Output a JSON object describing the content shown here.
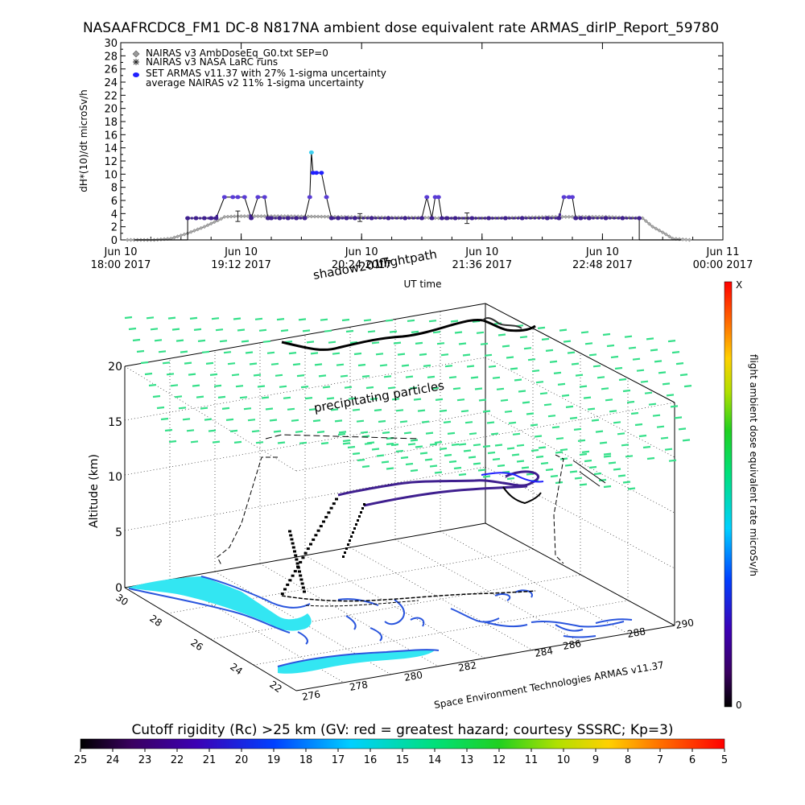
{
  "title": "NASAAFRCDC8_FM1 DC-8    N817NA ambient dose equivalent rate ARMAS_dirIP_Report_59780",
  "colors": {
    "nairas_v3": "#8a8a8a",
    "nairas_larc": "#333333",
    "armas": "#3f1f8f",
    "armas_peak": "#3fd0f0",
    "armas_blue": "#2020ff",
    "cutoff_cyan": "#33e6f2",
    "precip_green": "#36e08a",
    "coast_blue": "#2a55dd",
    "path_black": "#000000"
  },
  "legend": [
    {
      "label": "NAIRAS v3 AmbDoseEq_G0.txt SEP=0",
      "icon": "diamond-icon"
    },
    {
      "label": "NAIRAS v3 NASA LaRC runs",
      "icon": "star-icon"
    },
    {
      "label": "SET ARMAS v11.37 with 27% 1-sigma uncertainty",
      "icon": "filled-dot-icon"
    },
    {
      "label": "average NAIRAS v2 11% 1-sigma uncertainty",
      "icon": ""
    }
  ],
  "chart_data": [
    {
      "type": "scatter",
      "ylabel": "dH*(10)/dt microSv/h",
      "xlabel": "UT time",
      "ylim": [
        0,
        30
      ],
      "yticks": [
        0,
        2,
        4,
        6,
        8,
        10,
        12,
        14,
        16,
        18,
        20,
        22,
        24,
        26,
        28,
        30
      ],
      "xlim_minutes_from_start": [
        0,
        360
      ],
      "xticks": [
        {
          "line1": "Jun 10",
          "line2": "18:00 2017"
        },
        {
          "line1": "Jun 10",
          "line2": "19:12 2017"
        },
        {
          "line1": "Jun 10",
          "line2": "20:24 2017"
        },
        {
          "line1": "Jun 10",
          "line2": "21:36 2017"
        },
        {
          "line1": "Jun 10",
          "line2": "22:48 2017"
        },
        {
          "line1": "Jun 11",
          "line2": "00:00 2017"
        }
      ],
      "series": [
        {
          "name": "NAIRAS v3 AmbDoseEq_G0.txt SEP=0",
          "x_minutes": [
            4,
            20,
            30,
            40,
            50,
            55,
            60,
            62,
            70,
            80,
            100,
            130,
            160,
            170,
            180,
            190,
            200,
            220,
            240,
            260,
            270,
            280,
            290,
            300,
            312,
            318,
            325,
            330,
            340
          ],
          "y": [
            0,
            0,
            0.2,
            1,
            2,
            2.6,
            3.2,
            3.5,
            3.6,
            3.6,
            3.6,
            3.5,
            3.4,
            3.4,
            3.4,
            3.3,
            3.3,
            3.3,
            3.4,
            3.5,
            3.5,
            3.5,
            3.5,
            3.4,
            3.3,
            2,
            1,
            0.2,
            0
          ]
        },
        {
          "name": "SET ARMAS v11.37 with 27% 1-sigma uncertainty",
          "x_minutes": [
            40,
            45,
            50,
            54,
            57,
            62,
            67,
            70,
            74,
            78,
            82,
            86,
            88,
            90,
            95,
            100,
            105,
            110,
            113,
            114,
            115,
            117,
            120,
            123,
            126,
            130,
            135,
            140,
            150,
            160,
            170,
            180,
            183,
            186,
            188,
            190,
            192,
            195,
            200,
            210,
            220,
            230,
            240,
            255,
            262,
            265,
            268,
            270,
            272,
            275,
            280,
            290,
            300,
            310
          ],
          "y": [
            3.3,
            3.3,
            3.3,
            3.3,
            3.3,
            6.5,
            6.5,
            6.5,
            6.5,
            3.3,
            6.5,
            6.5,
            3.3,
            3.3,
            3.3,
            3.3,
            3.3,
            3.3,
            6.5,
            13.3,
            10.2,
            10.2,
            10.2,
            6.5,
            3.3,
            3.3,
            3.3,
            3.3,
            3.3,
            3.3,
            3.3,
            3.3,
            6.5,
            3.3,
            6.5,
            6.5,
            3.3,
            3.3,
            3.3,
            3.3,
            3.3,
            3.3,
            3.3,
            3.3,
            3.3,
            6.5,
            6.5,
            6.5,
            3.3,
            3.3,
            3.3,
            3.3,
            3.3,
            3.3
          ]
        }
      ]
    },
    {
      "type": "scatter",
      "zlabel": "Altitude (km)",
      "ztick_labels": [
        "0",
        "5",
        "10",
        "15",
        "20"
      ],
      "lat_tick_labels": [
        "30",
        "28",
        "26",
        "24",
        "22"
      ],
      "lon_tick_labels": [
        "276",
        "278",
        "280",
        "282",
        "284",
        "286",
        "288",
        "290"
      ],
      "annotations": [
        "shadow2017",
        "flightpath",
        "precipitating particles"
      ],
      "credit": "Space Environment Technologies ARMAS v11.37"
    }
  ],
  "right_colorbar": {
    "label": "flight ambient dose equivalent rate microSv/h",
    "top_label": "X",
    "bottom_label": "0"
  },
  "bottom_colorbar": {
    "title": "Cutoff rigidity (Rc) >25 km (GV: red = greatest hazard; courtesy SSSRC; Kp=3)",
    "ticks": [
      "25",
      "24",
      "23",
      "22",
      "21",
      "20",
      "19",
      "18",
      "17",
      "16",
      "15",
      "14",
      "13",
      "12",
      "11",
      "10",
      "9",
      "8",
      "7",
      "6",
      "5"
    ]
  }
}
